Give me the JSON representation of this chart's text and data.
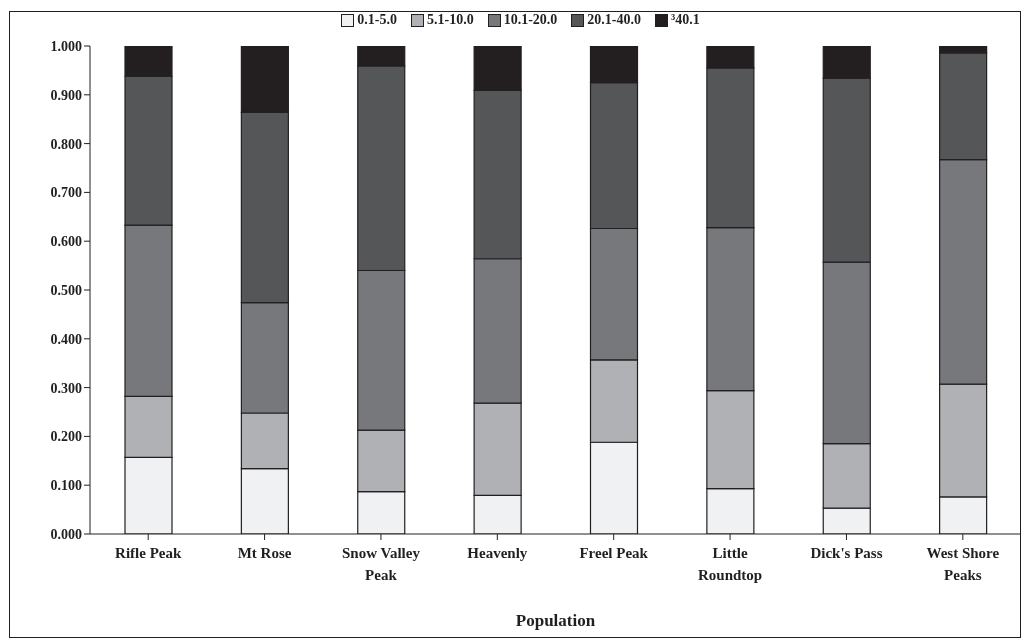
{
  "chart_data": {
    "type": "bar",
    "stacked": true,
    "xlabel": "Population",
    "categories": [
      "Rifle Peak",
      "Mt Rose",
      "Snow Valley Peak",
      "Heavenly",
      "Freel Peak",
      "Little Roundtop",
      "Dick's Pass",
      "West Shore Peaks"
    ],
    "series": [
      {
        "name": "0.1-5.0",
        "color": "#f0f1f3",
        "values": [
          0.157,
          0.134,
          0.087,
          0.079,
          0.188,
          0.093,
          0.053,
          0.076
        ]
      },
      {
        "name": "5.1-10.0",
        "color": "#b0b1b4",
        "values": [
          0.125,
          0.114,
          0.126,
          0.189,
          0.169,
          0.201,
          0.132,
          0.231
        ]
      },
      {
        "name": "10.1-20.0",
        "color": "#77787c",
        "values": [
          0.351,
          0.226,
          0.327,
          0.296,
          0.269,
          0.334,
          0.372,
          0.46
        ]
      },
      {
        "name": "20.1-40.0",
        "color": "#555658",
        "values": [
          0.305,
          0.39,
          0.419,
          0.345,
          0.299,
          0.327,
          0.377,
          0.219
        ]
      },
      {
        "name": "³40.1",
        "color": "#231f20",
        "values": [
          0.062,
          0.136,
          0.041,
          0.091,
          0.075,
          0.045,
          0.066,
          0.014
        ]
      }
    ],
    "ylim": [
      0,
      1
    ],
    "yticks": [
      {
        "value": 0,
        "label": "0.000"
      },
      {
        "value": 0.1,
        "label": "0.100"
      },
      {
        "value": 0.2,
        "label": "0.200"
      },
      {
        "value": 0.3,
        "label": "0.300"
      },
      {
        "value": 0.4,
        "label": "0.400"
      },
      {
        "value": 0.5,
        "label": "0.500"
      },
      {
        "value": 0.6,
        "label": "0.600"
      },
      {
        "value": 0.7,
        "label": "0.700"
      },
      {
        "value": 0.8,
        "label": "0.800"
      },
      {
        "value": 0.9,
        "label": "0.900"
      },
      {
        "value": 1,
        "label": "1.000"
      }
    ],
    "grid": false,
    "legend": "top"
  }
}
